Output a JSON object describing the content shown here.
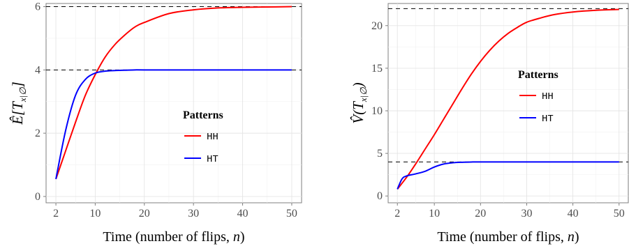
{
  "chart_data": [
    {
      "type": "line",
      "ylabel": "Ê[T x|∅]",
      "ylabel_parts": {
        "main": "Ê[T",
        "sub": "x|∅",
        "close": "]"
      },
      "xlabel": "Time (number of flips, n)",
      "xlabel_parts": {
        "text": "Time (number of flips, ",
        "var": "n",
        "close": ")"
      },
      "xlim": [
        0,
        52
      ],
      "ylim": [
        -0.2,
        6.1
      ],
      "x_ticks": [
        2,
        10,
        20,
        30,
        40,
        50
      ],
      "y_ticks": [
        0,
        2,
        4,
        6
      ],
      "reference_lines": [
        6,
        4
      ],
      "grid": true,
      "legend": {
        "title": "Patterns",
        "placement": "center-right"
      },
      "series": [
        {
          "name": "HH",
          "color": "#ff0000",
          "x": [
            2,
            4,
            6,
            8,
            10,
            12,
            14,
            16,
            18,
            20,
            25,
            30,
            35,
            40,
            45,
            50
          ],
          "values": [
            0.55,
            1.45,
            2.35,
            3.2,
            3.85,
            4.4,
            4.8,
            5.1,
            5.35,
            5.5,
            5.78,
            5.9,
            5.96,
            5.98,
            5.99,
            6.0
          ]
        },
        {
          "name": "HT",
          "color": "#0000ff",
          "x": [
            2,
            4,
            6,
            8,
            10,
            12,
            14,
            16,
            18,
            20,
            30,
            40,
            50
          ],
          "values": [
            0.55,
            2.1,
            3.2,
            3.7,
            3.9,
            3.96,
            3.98,
            3.99,
            4.0,
            4.0,
            4.0,
            4.0,
            4.0
          ]
        }
      ]
    },
    {
      "type": "line",
      "ylabel": "V̂(T x|∅)",
      "ylabel_parts": {
        "main": "V̂(T",
        "sub": "x|∅",
        "close": ")"
      },
      "xlabel": "Time (number of flips, n)",
      "xlabel_parts": {
        "text": "Time (number of flips, ",
        "var": "n",
        "close": ")"
      },
      "xlim": [
        0,
        52
      ],
      "ylim": [
        -0.8,
        22.6
      ],
      "x_ticks": [
        2,
        10,
        20,
        30,
        40,
        50
      ],
      "y_ticks": [
        0,
        5,
        10,
        15,
        20
      ],
      "reference_lines": [
        22,
        4
      ],
      "grid": true,
      "legend": {
        "title": "Patterns",
        "placement": "top-center"
      },
      "series": [
        {
          "name": "HH",
          "color": "#ff0000",
          "x": [
            2,
            4,
            6,
            8,
            10,
            12,
            14,
            16,
            18,
            20,
            22,
            24,
            26,
            28,
            30,
            33,
            36,
            40,
            45,
            50
          ],
          "values": [
            0.8,
            2.2,
            3.8,
            5.5,
            7.2,
            9.0,
            10.8,
            12.6,
            14.3,
            15.8,
            17.1,
            18.2,
            19.1,
            19.8,
            20.4,
            20.9,
            21.3,
            21.6,
            21.8,
            21.9
          ]
        },
        {
          "name": "HT",
          "color": "#0000ff",
          "x": [
            2,
            3,
            4,
            6,
            8,
            10,
            12,
            14,
            16,
            18,
            20,
            30,
            40,
            50
          ],
          "values": [
            0.8,
            2.0,
            2.35,
            2.6,
            2.9,
            3.4,
            3.75,
            3.9,
            3.96,
            3.99,
            4.0,
            4.0,
            4.0,
            4.0
          ]
        }
      ]
    }
  ]
}
